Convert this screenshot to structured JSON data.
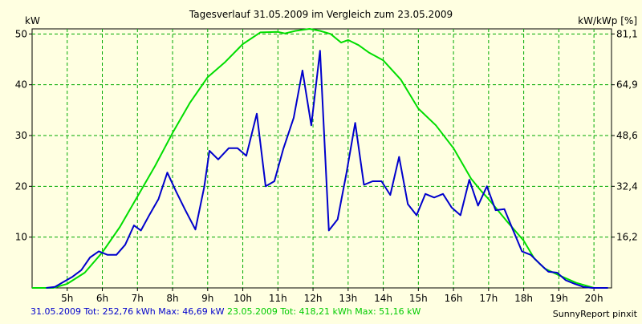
{
  "colors": {
    "background": "#ffffe1",
    "grid": "#00aa00",
    "series_blue": "#0000cc",
    "series_green": "#00dd00"
  },
  "chart_data": {
    "type": "line",
    "title": "Tagesverlauf 31.05.2009 im Vergleich zum 23.05.2009",
    "ylabel_left": "kW",
    "ylabel_right": "kW/kWp [%]",
    "xlim": [
      4.0,
      20.5
    ],
    "ylim": [
      0,
      51
    ],
    "grid": true,
    "x_ticks": [
      {
        "x": 5,
        "label": "5h"
      },
      {
        "x": 6,
        "label": "6h"
      },
      {
        "x": 7,
        "label": "7h"
      },
      {
        "x": 8,
        "label": "8h"
      },
      {
        "x": 9,
        "label": "9h"
      },
      {
        "x": 10,
        "label": "10h"
      },
      {
        "x": 11,
        "label": "11h"
      },
      {
        "x": 12,
        "label": "12h"
      },
      {
        "x": 13,
        "label": "13h"
      },
      {
        "x": 14,
        "label": "14h"
      },
      {
        "x": 15,
        "label": "15h"
      },
      {
        "x": 16,
        "label": "16h"
      },
      {
        "x": 17,
        "label": "17h"
      },
      {
        "x": 18,
        "label": "18h"
      },
      {
        "x": 19,
        "label": "19h"
      },
      {
        "x": 20,
        "label": "20h"
      }
    ],
    "y_ticks_left": [
      {
        "y": 10,
        "label": "10"
      },
      {
        "y": 20,
        "label": "20"
      },
      {
        "y": 30,
        "label": "30"
      },
      {
        "y": 40,
        "label": "40"
      },
      {
        "y": 50,
        "label": "50"
      }
    ],
    "y_ticks_right": [
      {
        "y": 10,
        "label": "16,2"
      },
      {
        "y": 20,
        "label": "32,4"
      },
      {
        "y": 30,
        "label": "48,6"
      },
      {
        "y": 40,
        "label": "64,9"
      },
      {
        "y": 50,
        "label": "81,1"
      }
    ],
    "series": [
      {
        "name": "31.05.2009",
        "color": "#0000cc",
        "points": [
          [
            4.4,
            0.0
          ],
          [
            4.65,
            0.2
          ],
          [
            4.9,
            1.2
          ],
          [
            5.15,
            2.2
          ],
          [
            5.4,
            3.5
          ],
          [
            5.65,
            6.0
          ],
          [
            5.9,
            7.2
          ],
          [
            6.15,
            6.5
          ],
          [
            6.4,
            6.5
          ],
          [
            6.65,
            8.5
          ],
          [
            6.9,
            12.3
          ],
          [
            7.1,
            11.3
          ],
          [
            7.35,
            14.5
          ],
          [
            7.6,
            17.5
          ],
          [
            7.85,
            22.7
          ],
          [
            8.1,
            19.0
          ],
          [
            8.35,
            15.5
          ],
          [
            8.65,
            11.5
          ],
          [
            8.9,
            19.8
          ],
          [
            9.05,
            27.0
          ],
          [
            9.3,
            25.3
          ],
          [
            9.6,
            27.5
          ],
          [
            9.85,
            27.5
          ],
          [
            10.1,
            26.0
          ],
          [
            10.4,
            34.3
          ],
          [
            10.65,
            20.0
          ],
          [
            10.9,
            21.0
          ],
          [
            11.15,
            27.3
          ],
          [
            11.45,
            33.5
          ],
          [
            11.7,
            42.8
          ],
          [
            11.95,
            32.0
          ],
          [
            12.2,
            46.7
          ],
          [
            12.45,
            11.3
          ],
          [
            12.7,
            13.5
          ],
          [
            12.95,
            22.5
          ],
          [
            13.2,
            32.5
          ],
          [
            13.45,
            20.3
          ],
          [
            13.7,
            21.0
          ],
          [
            13.95,
            21.0
          ],
          [
            14.2,
            18.3
          ],
          [
            14.45,
            25.8
          ],
          [
            14.7,
            16.5
          ],
          [
            14.95,
            14.3
          ],
          [
            15.2,
            18.5
          ],
          [
            15.45,
            17.8
          ],
          [
            15.7,
            18.5
          ],
          [
            15.95,
            15.8
          ],
          [
            16.2,
            14.3
          ],
          [
            16.45,
            21.3
          ],
          [
            16.7,
            16.2
          ],
          [
            16.95,
            20.0
          ],
          [
            17.2,
            15.3
          ],
          [
            17.45,
            15.5
          ],
          [
            17.7,
            11.3
          ],
          [
            17.95,
            7.2
          ],
          [
            18.2,
            6.5
          ],
          [
            18.45,
            4.8
          ],
          [
            18.7,
            3.2
          ],
          [
            18.95,
            3.0
          ],
          [
            19.2,
            1.5
          ],
          [
            19.45,
            0.8
          ],
          [
            19.7,
            0.2
          ],
          [
            19.95,
            0.0
          ],
          [
            20.4,
            0.0
          ]
        ]
      },
      {
        "name": "23.05.2009",
        "color": "#00dd00",
        "points": [
          [
            4.0,
            0.0
          ],
          [
            4.6,
            0.0
          ],
          [
            5.0,
            0.8
          ],
          [
            5.5,
            3.0
          ],
          [
            6.0,
            7.0
          ],
          [
            6.5,
            12.0
          ],
          [
            7.0,
            18.0
          ],
          [
            7.5,
            24.0
          ],
          [
            8.0,
            30.5
          ],
          [
            8.5,
            36.5
          ],
          [
            9.0,
            41.5
          ],
          [
            9.5,
            44.5
          ],
          [
            10.0,
            48.0
          ],
          [
            10.5,
            50.3
          ],
          [
            11.0,
            50.4
          ],
          [
            11.2,
            50.1
          ],
          [
            11.5,
            50.6
          ],
          [
            11.9,
            51.0
          ],
          [
            12.2,
            50.6
          ],
          [
            12.5,
            50.0
          ],
          [
            12.8,
            48.3
          ],
          [
            13.0,
            48.8
          ],
          [
            13.3,
            47.8
          ],
          [
            13.6,
            46.3
          ],
          [
            14.0,
            44.8
          ],
          [
            14.5,
            41.0
          ],
          [
            15.0,
            35.3
          ],
          [
            15.5,
            32.0
          ],
          [
            16.0,
            27.5
          ],
          [
            16.5,
            21.5
          ],
          [
            16.8,
            19.0
          ],
          [
            17.0,
            17.5
          ],
          [
            17.5,
            13.3
          ],
          [
            18.0,
            9.3
          ],
          [
            18.3,
            5.8
          ],
          [
            18.6,
            3.8
          ],
          [
            19.0,
            2.5
          ],
          [
            19.5,
            1.0
          ],
          [
            20.0,
            0.0
          ],
          [
            20.4,
            0.0
          ]
        ]
      }
    ]
  },
  "footer": {
    "blue_summary": "31.05.2009 Tot: 252,76 kWh Max: 46,69 kW",
    "green_summary": "23.05.2009 Tot: 418,21 kWh Max: 51,16 kW",
    "credit": "SunnyReport pinxit"
  }
}
